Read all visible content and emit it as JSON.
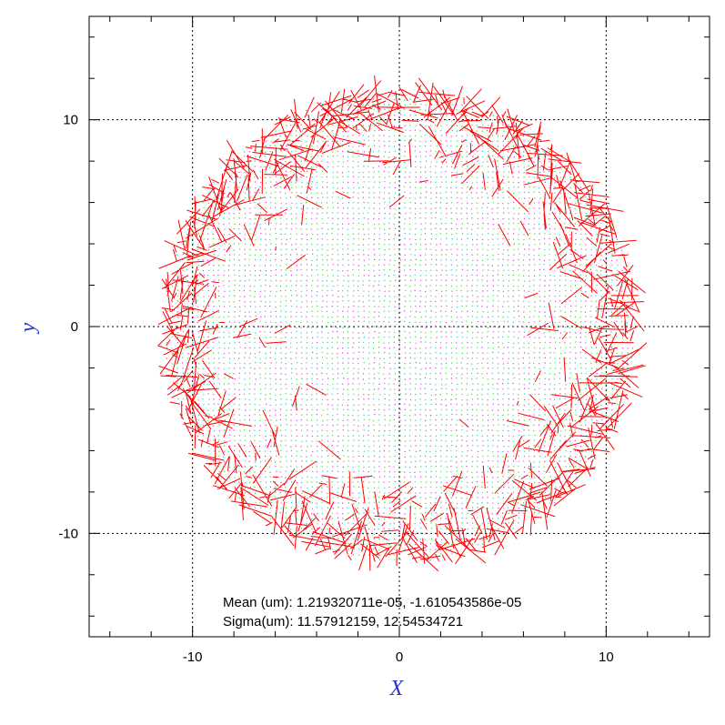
{
  "chart_data": {
    "type": "scatter",
    "title": "",
    "xlabel": "X",
    "ylabel": "y",
    "xlim": [
      -15,
      15
    ],
    "ylim": [
      -15,
      15
    ],
    "xticks": [
      -10,
      0,
      10
    ],
    "yticks": [
      -10,
      0,
      10
    ],
    "xtick_labels": [
      "-10",
      "0",
      "10"
    ],
    "ytick_labels": [
      "-10",
      "0",
      "10"
    ],
    "grid": true,
    "grid_style": "dotted",
    "series": [
      {
        "marker": "dot-grid",
        "colors": [
          "#00cc00",
          "#cc00cc",
          "#00aaaa"
        ],
        "region": "disk",
        "center": [
          0,
          0
        ],
        "radius": 11.5,
        "grid_step": 0.25
      },
      {
        "marker": "whisker",
        "color": "#ff0000",
        "region": "disk-rim",
        "center": [
          0,
          0
        ],
        "radius": 11.5
      }
    ],
    "annotations": [
      "Mean (um): 1.219320711e-05, -1.610543586e-05",
      "Sigma(um): 11.57912159, 12.54534721"
    ]
  }
}
